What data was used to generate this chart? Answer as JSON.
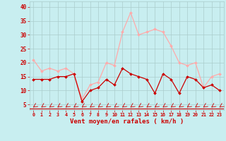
{
  "hours": [
    0,
    1,
    2,
    3,
    4,
    5,
    6,
    7,
    8,
    9,
    10,
    11,
    12,
    13,
    14,
    15,
    16,
    17,
    18,
    19,
    20,
    21,
    22,
    23
  ],
  "vent_moyen": [
    14,
    14,
    14,
    15,
    15,
    16,
    6,
    10,
    11,
    14,
    12,
    18,
    16,
    15,
    14,
    9,
    16,
    14,
    9,
    15,
    14,
    11,
    12,
    10
  ],
  "rafales": [
    21,
    17,
    18,
    17,
    18,
    16,
    7,
    12,
    13,
    20,
    19,
    31,
    38,
    30,
    31,
    32,
    31,
    26,
    20,
    19,
    20,
    11,
    15,
    16
  ],
  "line_moyen_color": "#cc0000",
  "line_rafales_color": "#ffaaaa",
  "bg_color": "#c8eef0",
  "grid_color": "#aacccc",
  "tick_color": "#cc0000",
  "label_color": "#cc0000",
  "xlabel": "Vent moyen/en rafales ( km/h )",
  "ylim": [
    3,
    42
  ],
  "yticks": [
    5,
    10,
    15,
    20,
    25,
    30,
    35,
    40
  ]
}
